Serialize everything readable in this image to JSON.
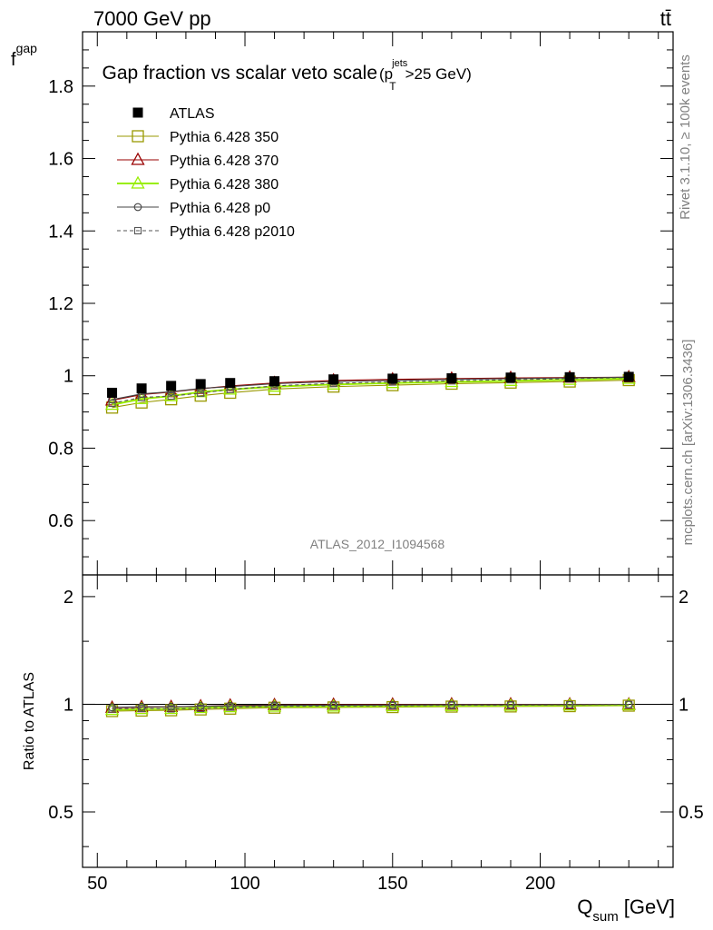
{
  "header": {
    "energy": "7000 GeV pp",
    "process": "tt̄"
  },
  "side_labels": {
    "rivet": "Rivet 3.1.10, ≥ 100k events",
    "source": "mcplots.cern.ch [arXiv:1306.3436]"
  },
  "analysis_id": "ATLAS_2012_I1094568",
  "colors": {
    "data": "#000000",
    "pythia_350": "#999900",
    "pythia_370": "#990000",
    "pythia_380": "#99ee00",
    "pythia_p0": "#444444",
    "pythia_p2010": "#555555"
  },
  "chart_data": [
    {
      "type": "line",
      "title": "Gap fraction vs scalar veto scale",
      "title_cut": {
        "p": "p",
        "sub": "T",
        "sup": "jets",
        "rest": ">25 GeV)"
      },
      "ylabel": "f",
      "ylabel_sub": "gap",
      "xlim": [
        45,
        245
      ],
      "ylim": [
        0.45,
        1.95
      ],
      "yticks": [
        0.6,
        0.8,
        1,
        1.2,
        1.4,
        1.6,
        1.8
      ],
      "ytick_labels": [
        "0.6",
        "0.8",
        "1",
        "1.2",
        "1.4",
        "1.6",
        "1.8"
      ],
      "legend_position": "top-left",
      "x": [
        55,
        65,
        75,
        85,
        95,
        110,
        130,
        150,
        170,
        190,
        210,
        230
      ],
      "series": [
        {
          "name": "ATLAS",
          "marker": "filled-square",
          "line": "none",
          "values": [
            0.953,
            0.965,
            0.972,
            0.977,
            0.98,
            0.985,
            0.99,
            0.992,
            0.993,
            0.995,
            0.996,
            0.997
          ]
        },
        {
          "name": "Pythia 6.428 350",
          "marker": "open-square",
          "line": "solid",
          "values": [
            0.912,
            0.926,
            0.935,
            0.945,
            0.953,
            0.963,
            0.97,
            0.974,
            0.978,
            0.981,
            0.984,
            0.988
          ]
        },
        {
          "name": "Pythia 6.428 370",
          "marker": "open-triangle",
          "line": "solid",
          "values": [
            0.932,
            0.948,
            0.955,
            0.964,
            0.972,
            0.98,
            0.987,
            0.99,
            0.992,
            0.994,
            0.995,
            0.996
          ]
        },
        {
          "name": "Pythia 6.428 380",
          "marker": "open-triangle",
          "line": "solid",
          "values": [
            0.92,
            0.936,
            0.944,
            0.955,
            0.962,
            0.97,
            0.976,
            0.98,
            0.983,
            0.986,
            0.989,
            0.992
          ]
        },
        {
          "name": "Pythia 6.428 p0",
          "marker": "open-circle",
          "line": "solid",
          "values": [
            0.934,
            0.95,
            0.956,
            0.965,
            0.97,
            0.978,
            0.984,
            0.987,
            0.99,
            0.992,
            0.994,
            0.996
          ]
        },
        {
          "name": "Pythia 6.428 p2010",
          "marker": "small-open-square",
          "line": "dashed",
          "values": [
            0.924,
            0.94,
            0.944,
            0.952,
            0.962,
            0.972,
            0.979,
            0.983,
            0.986,
            0.989,
            0.992,
            0.995
          ]
        }
      ]
    },
    {
      "type": "line",
      "ylabel": "Ratio to ATLAS",
      "xlabel": "Q",
      "xlabel_sub": "sum",
      "xlabel_unit": "[GeV]",
      "xlim": [
        45,
        245
      ],
      "xticks": [
        50,
        100,
        150,
        200
      ],
      "xtick_labels": [
        "50",
        "100",
        "150",
        "200"
      ],
      "ylim": [
        0.35,
        2.3
      ],
      "log_y": true,
      "yticks": [
        0.5,
        1,
        2
      ],
      "ytick_labels": [
        "0.5",
        "1",
        "2"
      ],
      "x": [
        55,
        65,
        75,
        85,
        95,
        110,
        130,
        150,
        170,
        190,
        210,
        230
      ],
      "series": [
        {
          "name": "Pythia 6.428 350",
          "values": [
            0.957,
            0.96,
            0.962,
            0.967,
            0.972,
            0.978,
            0.98,
            0.982,
            0.985,
            0.986,
            0.988,
            0.991
          ]
        },
        {
          "name": "Pythia 6.428 370",
          "values": [
            0.978,
            0.982,
            0.983,
            0.987,
            0.992,
            0.995,
            0.997,
            0.998,
            0.999,
            0.999,
            0.999,
            0.999
          ]
        },
        {
          "name": "Pythia 6.428 380",
          "values": [
            0.965,
            0.97,
            0.971,
            0.977,
            0.982,
            0.985,
            0.986,
            0.988,
            0.99,
            0.991,
            0.993,
            0.995
          ]
        },
        {
          "name": "Pythia 6.428 p0",
          "values": [
            0.98,
            0.984,
            0.984,
            0.988,
            0.99,
            0.993,
            0.994,
            0.995,
            0.997,
            0.997,
            0.998,
            0.999
          ]
        },
        {
          "name": "Pythia 6.428 p2010",
          "values": [
            0.97,
            0.974,
            0.971,
            0.974,
            0.982,
            0.987,
            0.989,
            0.991,
            0.993,
            0.994,
            0.996,
            0.998
          ]
        }
      ]
    }
  ]
}
